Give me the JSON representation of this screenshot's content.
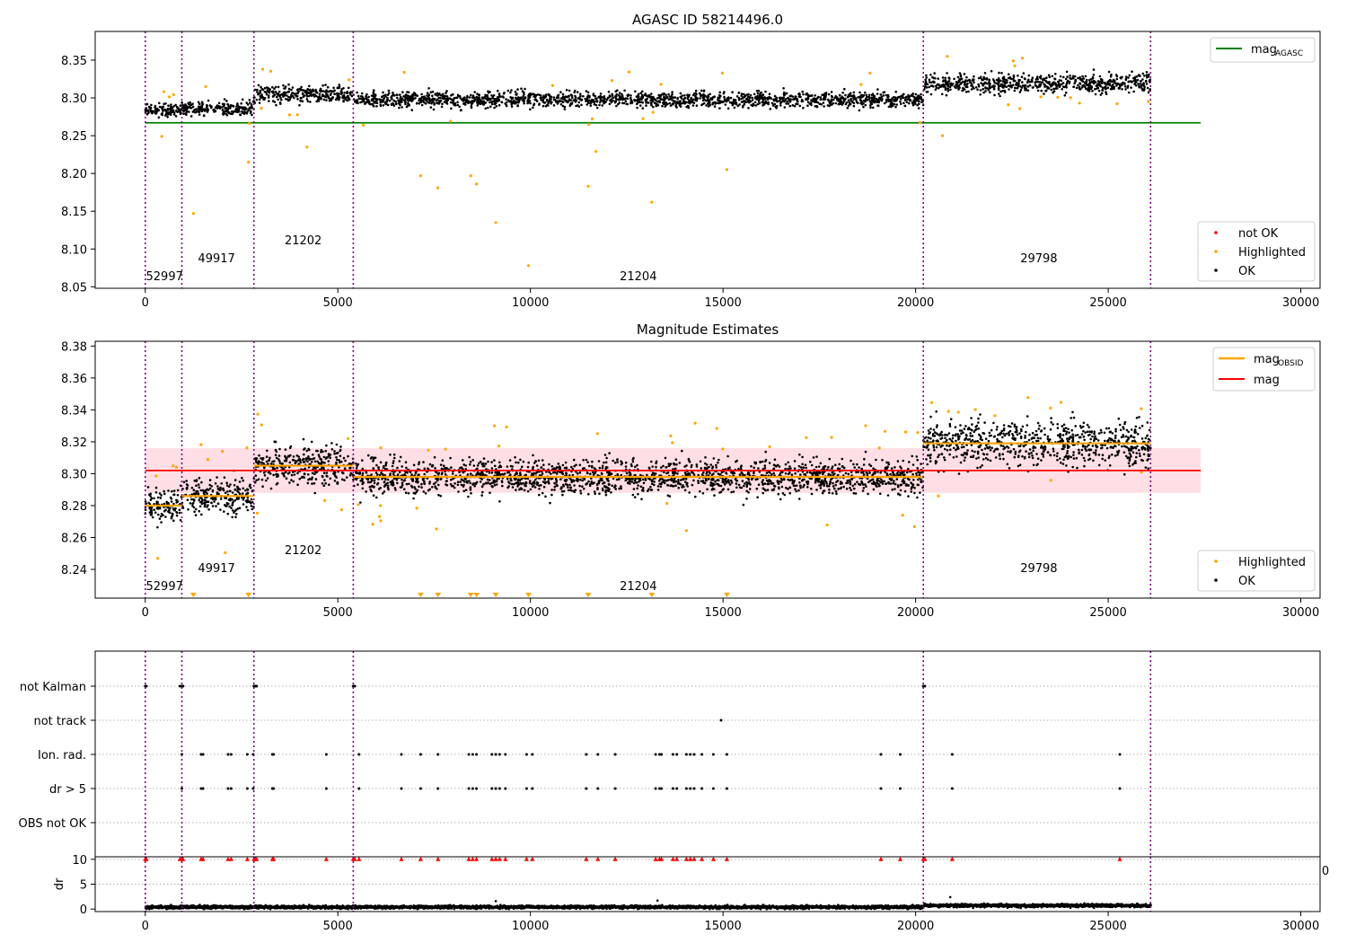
{
  "figure": {
    "title_top": "AGASC ID 58214496.0",
    "title_mid": "Magnitude Estimates"
  },
  "colors": {
    "ok": "#000000",
    "highlighted": "#ffa500",
    "not_ok": "#ff0000",
    "agasc_line": "#008000",
    "mag_line": "#ff0000",
    "obsid_line": "#ffa500",
    "band": "#ffc0cb",
    "obs_divider": "#800080",
    "grid": "#b0b0b0"
  },
  "obs_boundaries": [
    0,
    950,
    2820,
    5400,
    20200,
    26100
  ],
  "obsids": [
    {
      "label": "52997",
      "x": 500,
      "level": 0
    },
    {
      "label": "49917",
      "x": 1850,
      "level": 1
    },
    {
      "label": "21202",
      "x": 4100,
      "level": 2
    },
    {
      "label": "21204",
      "x": 12800,
      "level": 0
    },
    {
      "label": "29798",
      "x": 23200,
      "level": 1
    }
  ],
  "chart_data": [
    {
      "type": "scatter",
      "title": "AGASC ID 58214496.0",
      "xlim": [
        -1300,
        30500
      ],
      "ylim": [
        8.048,
        8.388
      ],
      "xticks": [
        "0",
        "5000",
        "10000",
        "15000",
        "20000",
        "25000",
        "30000"
      ],
      "yticks": [
        "8.05",
        "8.10",
        "8.15",
        "8.20",
        "8.25",
        "8.30",
        "8.35"
      ],
      "agasc_mag": 8.267,
      "agasc_range": [
        0,
        27400
      ],
      "legend_lines": [
        {
          "label": "mag",
          "sub": "AGASC"
        }
      ],
      "legend_points": [
        "not OK",
        "Highlighted",
        "OK"
      ],
      "segments": [
        {
          "x": [
            0,
            950
          ],
          "mean": 8.283,
          "spread": 0.006
        },
        {
          "x": [
            950,
            2820
          ],
          "mean": 8.286,
          "spread": 0.007
        },
        {
          "x": [
            2820,
            5400
          ],
          "mean": 8.305,
          "spread": 0.008
        },
        {
          "x": [
            5400,
            20200
          ],
          "mean": 8.298,
          "spread": 0.007
        },
        {
          "x": [
            20200,
            26100
          ],
          "mean": 8.319,
          "spread": 0.009
        }
      ],
      "highlighted_outliers": [
        [
          1250,
          8.147
        ],
        [
          2680,
          8.215
        ],
        [
          4200,
          8.235
        ],
        [
          7150,
          8.197
        ],
        [
          7600,
          8.181
        ],
        [
          8450,
          8.197
        ],
        [
          8600,
          8.186
        ],
        [
          9100,
          8.135
        ],
        [
          9950,
          8.078
        ],
        [
          11500,
          8.183
        ],
        [
          11700,
          8.229
        ],
        [
          13150,
          8.162
        ],
        [
          15100,
          8.205
        ],
        [
          20700,
          8.25
        ]
      ]
    },
    {
      "type": "scatter",
      "title": "Magnitude Estimates",
      "xlim": [
        -1300,
        30500
      ],
      "ylim": [
        8.222,
        8.383
      ],
      "xticks": [
        "0",
        "5000",
        "10000",
        "15000",
        "20000",
        "25000",
        "30000"
      ],
      "yticks": [
        "8.24",
        "8.26",
        "8.28",
        "8.30",
        "8.32",
        "8.34",
        "8.36",
        "8.38"
      ],
      "mag": 8.302,
      "mag_band": [
        8.288,
        8.316
      ],
      "mag_range": [
        0,
        27400
      ],
      "obsid_mags": [
        {
          "x": [
            0,
            950
          ],
          "mag": 8.28
        },
        {
          "x": [
            950,
            2820
          ],
          "mag": 8.286
        },
        {
          "x": [
            2820,
            5400
          ],
          "mag": 8.305
        },
        {
          "x": [
            5400,
            20200
          ],
          "mag": 8.298
        },
        {
          "x": [
            20200,
            26100
          ],
          "mag": 8.319
        }
      ],
      "legend_lines": [
        {
          "label": "mag",
          "sub": "OBSID"
        },
        {
          "label": "mag",
          "sub": ""
        }
      ],
      "legend_points": [
        "Highlighted",
        "OK"
      ],
      "offscale_x": [
        1250,
        2680,
        7150,
        7600,
        8450,
        8600,
        9100,
        9950,
        11500,
        13150,
        15100
      ]
    },
    {
      "type": "scatter",
      "title": "",
      "xlim": [
        -1300,
        30500
      ],
      "categories": [
        "not Kalman",
        "not track",
        "Ion. rad.",
        "dr > 5",
        "OBS not OK"
      ],
      "flags": {
        "not Kalman": [
          0,
          30,
          900,
          950,
          980,
          2820,
          2860,
          2890,
          5400,
          5440,
          20200,
          20240
        ],
        "not track": [
          14950
        ],
        "Ion. rad.": [
          950,
          1450,
          1500,
          2150,
          2230,
          2650,
          2800,
          3300,
          3330,
          4700,
          5550,
          6650,
          7150,
          7600,
          8400,
          8500,
          8600,
          9000,
          9100,
          9200,
          9350,
          9900,
          10050,
          11450,
          11750,
          12200,
          13250,
          13350,
          13400,
          13700,
          13800,
          14050,
          14150,
          14250,
          14450,
          14750,
          15100,
          19100,
          19600,
          20950,
          25300
        ],
        "dr > 5": [
          950,
          1450,
          1500,
          2150,
          2230,
          2650,
          2800,
          3300,
          3330,
          4700,
          5550,
          6650,
          7150,
          7600,
          8400,
          8500,
          8600,
          9000,
          9100,
          9200,
          9350,
          9900,
          10050,
          11450,
          11750,
          12200,
          13250,
          13350,
          13400,
          13700,
          13800,
          14050,
          14150,
          14250,
          14450,
          14750,
          15100,
          19100,
          19600,
          20950,
          25300
        ],
        "OBS not OK": []
      }
    },
    {
      "type": "scatter",
      "title": "",
      "ylabel": "dr",
      "xlim": [
        -1300,
        30500
      ],
      "ylim": [
        -0.5,
        10.5
      ],
      "xticks": [
        "0",
        "5000",
        "10000",
        "15000",
        "20000",
        "25000",
        "30000"
      ],
      "yticks": [
        "0",
        "5",
        "10"
      ],
      "overlap_tick": "0",
      "red_capped_x": [
        0,
        30,
        900,
        950,
        980,
        1450,
        1500,
        2150,
        2230,
        2650,
        2820,
        2860,
        2890,
        3300,
        3330,
        4700,
        5400,
        5440,
        5550,
        6650,
        7150,
        7600,
        8400,
        8500,
        8600,
        9000,
        9100,
        9200,
        9350,
        9900,
        10050,
        11450,
        11750,
        12200,
        13250,
        13350,
        13400,
        13700,
        13800,
        14050,
        14150,
        14250,
        14450,
        14750,
        15100,
        19100,
        19600,
        20200,
        20240,
        20950,
        25300
      ],
      "baseline": {
        "range": [
          0,
          26100
        ],
        "typical": 0.4,
        "late_typical": 0.7
      },
      "spikes": [
        [
          9100,
          1.6
        ],
        [
          13300,
          1.7
        ],
        [
          20900,
          2.4
        ]
      ]
    }
  ]
}
